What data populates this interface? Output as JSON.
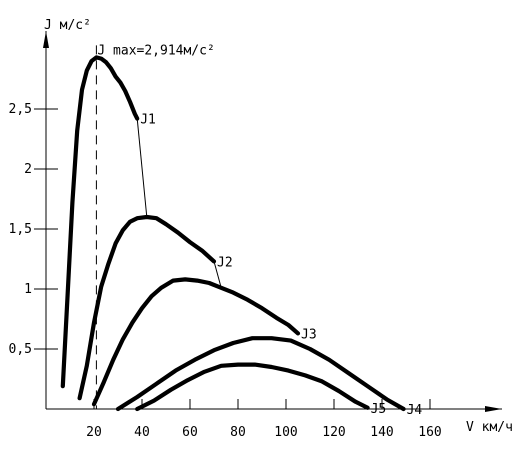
{
  "chart_data": {
    "type": "line",
    "ylabel": "J м/с²",
    "xlabel": "V км/ч",
    "xlim": [
      0,
      190
    ],
    "ylim": [
      0,
      3.15
    ],
    "x_ticks": [
      20,
      40,
      60,
      80,
      100,
      120,
      140,
      160
    ],
    "x_tick_labels": [
      "20",
      "40",
      "60",
      "80",
      "100",
      "120",
      "140",
      "160"
    ],
    "y_ticks": [
      0.5,
      1,
      1.5,
      2,
      2.5
    ],
    "y_tick_labels": [
      "0,5",
      "1",
      "1,5",
      "2",
      "2,5"
    ],
    "grid": false,
    "series": [
      {
        "name": "J1",
        "x": [
          7,
          9,
          11,
          13,
          15,
          17,
          19,
          21,
          23,
          25,
          27,
          29,
          31,
          33,
          35,
          37,
          38
        ],
        "y": [
          0.19,
          0.95,
          1.72,
          2.32,
          2.66,
          2.82,
          2.9,
          2.93,
          2.92,
          2.89,
          2.84,
          2.77,
          2.72,
          2.65,
          2.56,
          2.46,
          2.42
        ]
      },
      {
        "name": "J2",
        "x": [
          14,
          17,
          20,
          23,
          26,
          29,
          32,
          35,
          38,
          42,
          46,
          50,
          55,
          60,
          65,
          70
        ],
        "y": [
          0.09,
          0.36,
          0.72,
          1.02,
          1.21,
          1.38,
          1.49,
          1.56,
          1.59,
          1.6,
          1.59,
          1.54,
          1.47,
          1.39,
          1.32,
          1.23
        ]
      },
      {
        "name": "J3",
        "x": [
          20,
          24,
          28,
          32,
          36,
          40,
          44,
          48,
          53,
          58,
          63,
          68,
          73,
          78,
          84,
          90,
          96,
          101,
          105
        ],
        "y": [
          0.04,
          0.22,
          0.41,
          0.58,
          0.72,
          0.84,
          0.94,
          1.01,
          1.07,
          1.08,
          1.07,
          1.05,
          1.01,
          0.97,
          0.91,
          0.84,
          0.76,
          0.7,
          0.63
        ]
      },
      {
        "name": "J4",
        "x": [
          30,
          38,
          46,
          54,
          62,
          70,
          78,
          86,
          94,
          102,
          110,
          118,
          126,
          134,
          142,
          149
        ],
        "y": [
          0.0,
          0.1,
          0.21,
          0.32,
          0.41,
          0.49,
          0.55,
          0.59,
          0.59,
          0.57,
          0.5,
          0.41,
          0.3,
          0.19,
          0.08,
          0.0
        ]
      },
      {
        "name": "J5",
        "x": [
          38,
          45,
          52,
          59,
          66,
          73,
          80,
          87,
          94,
          101,
          108,
          115,
          122,
          129,
          134
        ],
        "y": [
          0.0,
          0.07,
          0.16,
          0.24,
          0.31,
          0.36,
          0.37,
          0.37,
          0.35,
          0.32,
          0.28,
          0.23,
          0.15,
          0.06,
          0.01
        ]
      }
    ],
    "connectors": [
      {
        "x": [
          38,
          42
        ],
        "y": [
          2.42,
          1.6
        ]
      },
      {
        "x": [
          70,
          73
        ],
        "y": [
          1.23,
          1.01
        ]
      },
      {
        "x": [
          100,
          105
        ],
        "y": [
          0.7,
          0.63
        ]
      }
    ],
    "annotation": {
      "text": "J max=2,914м/с²",
      "x": 21,
      "y": 2.914
    }
  }
}
